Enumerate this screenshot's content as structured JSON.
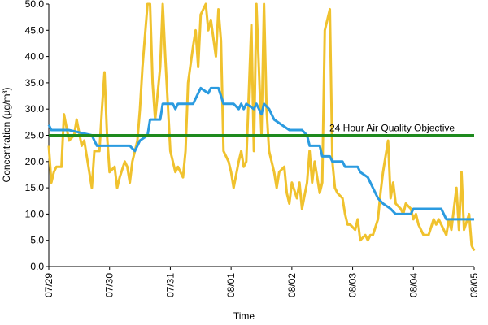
{
  "chart_data": {
    "type": "line",
    "x_label": "Time",
    "y_label": "Concentration (µg/m³)",
    "xlim": [
      0,
      168
    ],
    "xticks": [
      {
        "value": 0,
        "label": "07/29"
      },
      {
        "value": 24,
        "label": "07/30"
      },
      {
        "value": 48,
        "label": "07/31"
      },
      {
        "value": 72,
        "label": "08/01"
      },
      {
        "value": 96,
        "label": "08/02"
      },
      {
        "value": 120,
        "label": "08/03"
      },
      {
        "value": 144,
        "label": "08/04"
      },
      {
        "value": 168,
        "label": "08/05"
      }
    ],
    "ylim": [
      0,
      50
    ],
    "yticks": [
      {
        "value": 0,
        "label": "0.0"
      },
      {
        "value": 5,
        "label": "5.0"
      },
      {
        "value": 10,
        "label": "10.0"
      },
      {
        "value": 15,
        "label": "15.0"
      },
      {
        "value": 20,
        "label": "20.0"
      },
      {
        "value": 25,
        "label": "25.0"
      },
      {
        "value": 30,
        "label": "30.0"
      },
      {
        "value": 35,
        "label": "35.0"
      },
      {
        "value": 40,
        "label": "40.0"
      },
      {
        "value": 45,
        "label": "45.0"
      },
      {
        "value": 50,
        "label": "50.0"
      }
    ],
    "series": [
      {
        "color": "#f0c22e",
        "x": [
          0,
          1,
          2,
          3,
          5,
          6,
          8,
          10,
          11,
          13,
          14,
          15,
          17,
          18,
          20,
          21,
          22,
          23,
          24,
          26,
          27,
          28,
          30,
          31,
          32,
          33,
          35,
          36,
          37,
          39,
          40,
          41,
          42,
          44,
          45,
          46,
          48,
          49,
          50,
          51,
          53,
          54,
          55,
          57,
          58,
          59,
          60,
          62,
          63,
          64,
          66,
          67,
          68,
          69,
          71,
          72,
          73,
          75,
          76,
          77,
          78,
          80,
          81,
          82,
          84,
          85,
          86,
          87,
          89,
          90,
          91,
          93,
          94,
          95,
          96,
          98,
          99,
          100,
          102,
          103,
          104,
          105,
          107,
          108,
          109,
          111,
          112,
          113,
          114,
          116,
          117,
          118,
          119,
          121,
          122,
          123,
          125,
          126,
          127,
          128,
          130,
          131,
          132,
          134,
          135,
          136,
          137,
          139,
          140,
          141,
          143,
          144,
          145,
          146,
          148,
          149,
          150,
          152,
          153,
          154,
          155,
          157,
          158,
          159,
          161,
          162,
          163,
          164,
          166,
          167,
          168
        ],
        "values": [
          23,
          16,
          18,
          19,
          19,
          29,
          24,
          25,
          28,
          23,
          24,
          21,
          15,
          22,
          22,
          30,
          37,
          25,
          18,
          19,
          15,
          17,
          20,
          19,
          16,
          20,
          24,
          30,
          38,
          50,
          50,
          35,
          28,
          38,
          50,
          40,
          22,
          20,
          18,
          19,
          17,
          22,
          35,
          42,
          45,
          38,
          48,
          50,
          45,
          47,
          40,
          49,
          43,
          22,
          20,
          18,
          15,
          20,
          22,
          19,
          20,
          46,
          22,
          50,
          25,
          50,
          30,
          22,
          18,
          15,
          18,
          19,
          14,
          12,
          16,
          13,
          16,
          11,
          16,
          22,
          16,
          20,
          14,
          16,
          45,
          49,
          20,
          15,
          14,
          13,
          10,
          8,
          8,
          7,
          9,
          5,
          6,
          5,
          6,
          6,
          9,
          14,
          18,
          24,
          13,
          16,
          12,
          11,
          10,
          12,
          11,
          9,
          10,
          8,
          6,
          6,
          6,
          9,
          8,
          9,
          8,
          6,
          9,
          7,
          15,
          7,
          18,
          7,
          10,
          4,
          3
        ]
      },
      {
        "color": "#2b9be0",
        "x": [
          0,
          1,
          6,
          8,
          17,
          19,
          32,
          34,
          36,
          39,
          40,
          44,
          45,
          49,
          50,
          51,
          57,
          58,
          59,
          60,
          63,
          64,
          67,
          69,
          73,
          75,
          76,
          77,
          78,
          81,
          82,
          84,
          85,
          87,
          89,
          92,
          95,
          100,
          102,
          103,
          107,
          108,
          111,
          112,
          116,
          117,
          122,
          123,
          126,
          128,
          130,
          132,
          135,
          137,
          143,
          144,
          155,
          157,
          168
        ],
        "values": [
          27,
          26,
          26,
          26,
          25,
          23,
          23,
          22,
          24,
          25,
          28,
          28,
          31,
          31,
          30,
          31,
          31,
          32,
          33,
          34,
          33,
          34,
          34,
          31,
          31,
          30,
          31,
          30,
          31,
          30,
          31,
          29,
          31,
          30,
          28,
          27,
          26,
          26,
          25,
          23,
          23,
          21,
          21,
          20,
          20,
          19,
          19,
          18,
          17,
          15,
          13,
          12,
          11,
          10,
          10,
          11,
          11,
          9,
          9
        ]
      }
    ],
    "reference_line": {
      "value": 25,
      "label": "24 Hour Air Quality Objective",
      "color": "#1e8a1e"
    }
  }
}
